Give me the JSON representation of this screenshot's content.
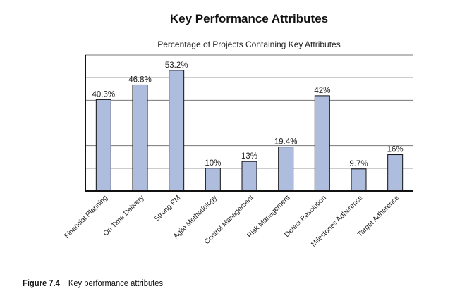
{
  "chart_data": {
    "type": "bar",
    "title": "Key Performance Attributes",
    "subtitle": "Percentage of Projects Containing Key Attributes",
    "categories": [
      "Financial Planning",
      "On Time Delivery",
      "Strong PM",
      "Agile Methodology",
      "Control Management",
      "Risk Management",
      "Defect Resolution",
      "Milestones Adherence",
      "Target Adherence"
    ],
    "values": [
      40.3,
      46.8,
      53.2,
      10,
      13,
      19.4,
      42,
      9.7,
      16
    ],
    "data_labels": [
      "40.3%",
      "46.8%",
      "53.2%",
      "10%",
      "13%",
      "19.4%",
      "42%",
      "9.7%",
      "16%"
    ],
    "ylim": [
      0,
      60
    ],
    "grid": true,
    "bar_color": "#aebcde",
    "bar_edge_color": "#111111",
    "grid_color": "#777777"
  },
  "caption": {
    "number": "Figure 7.4",
    "text": "Key performance attributes"
  }
}
